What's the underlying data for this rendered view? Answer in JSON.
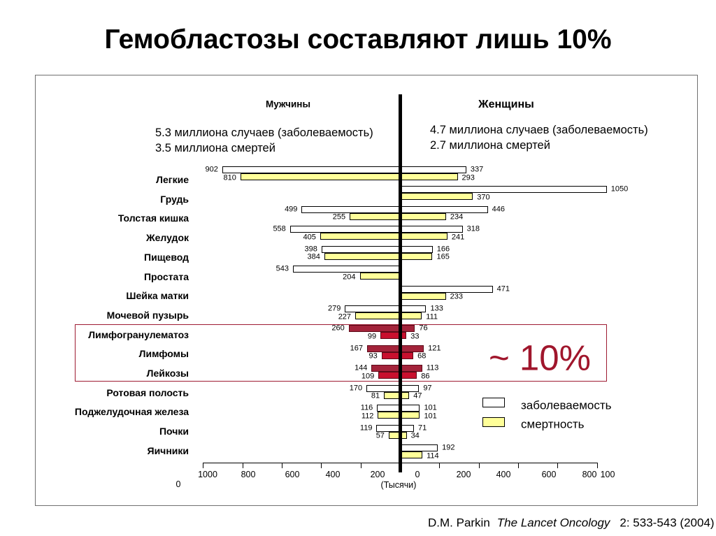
{
  "slide": {
    "title": "Гемобластозы составляют лишь 10%"
  },
  "source": {
    "author": "D.M. Parkin",
    "journal": "The Lancet Oncology",
    "citation": "2: 533-543 (2004)"
  },
  "colors": {
    "highlight_box": "#9E1B32",
    "annotation": "#A0162C",
    "center_line": "#000000"
  },
  "chart_data": {
    "type": "bar",
    "orientation": "horizontal",
    "sides": {
      "men": {
        "label": "Мужчины",
        "cases": "5.3 миллиона случаев (заболеваемость)",
        "deaths": "3.5 миллиона смертей"
      },
      "women": {
        "label": "Женщины",
        "cases": "4.7 миллиона случаев (заболеваемость)",
        "deaths": "2.7 миллиона смертей"
      }
    },
    "categories": [
      "Легкие",
      "Грудь",
      "Толстая кишка",
      "Желудок",
      "Пищевод",
      "Простата",
      "Шейка матки",
      "Мочевой пузырь",
      "Лимфогранулематоз",
      "Лимфомы",
      "Лейкозы",
      "Ротовая полость",
      "Поджелудочная железа",
      "Почки",
      "Яичники"
    ],
    "series": [
      {
        "name": "заболеваемость",
        "color": "#FFFFFF",
        "highlight_color": "#A3233A",
        "men": [
          902,
          null,
          499,
          558,
          398,
          543,
          null,
          279,
          260,
          167,
          144,
          170,
          116,
          119,
          null
        ],
        "women": [
          337,
          1050,
          446,
          318,
          166,
          null,
          471,
          133,
          76,
          121,
          113,
          97,
          101,
          71,
          192
        ]
      },
      {
        "name": "смертность",
        "color": "#FFFF99",
        "highlight_color": "#C8102E",
        "men": [
          810,
          null,
          255,
          405,
          384,
          204,
          null,
          227,
          99,
          93,
          109,
          81,
          112,
          57,
          null
        ],
        "women": [
          293,
          370,
          234,
          241,
          165,
          null,
          233,
          111,
          33,
          68,
          86,
          47,
          101,
          34,
          114
        ]
      }
    ],
    "highlight": [
      false,
      false,
      false,
      false,
      false,
      false,
      false,
      false,
      true,
      true,
      true,
      false,
      false,
      false,
      false
    ],
    "annotation": "~ 10%",
    "xlabel": "(Тысячи)",
    "x_tick_labels": [
      "1000",
      "800",
      "600",
      "400",
      "200",
      "0",
      "200",
      "400",
      "600",
      "800",
      "100"
    ],
    "x_tick_label_overflow": "0",
    "xlim": [
      0,
      1000
    ],
    "grid": false,
    "legend_position": "right"
  }
}
